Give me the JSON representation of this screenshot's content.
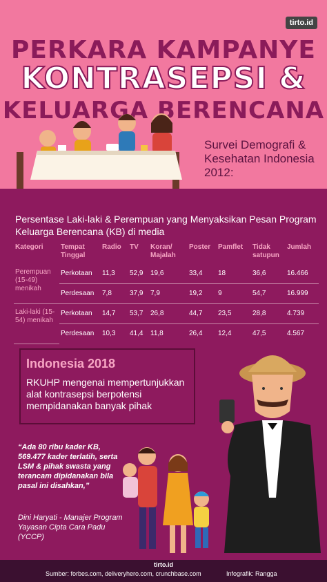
{
  "brand": {
    "logo": "tirto.id",
    "footer": "tirto.id"
  },
  "title": {
    "line1": "PERKARA KAMPANYE",
    "line2": "KONTRASEPSI &",
    "line3": "KELUARGA BERENCANA"
  },
  "survey": "Survei Demografi & Kesehatan Indonesia 2012:",
  "table": {
    "caption": "Persentase Laki-laki & Perempuan yang Menyaksikan Pesan Program Keluarga Berencana (KB) di media",
    "headers": [
      "Kategori",
      "Tempat Tinggal",
      "Radio",
      "TV",
      "Koran/ Majalah",
      "Poster",
      "Pamflet",
      "Tidak satupun",
      "Jumlah"
    ],
    "groups": [
      {
        "label": "Perempuan (15-49) menikah",
        "rows": [
          [
            "Perkotaan",
            "11,3",
            "52,9",
            "19,6",
            "33,4",
            "18",
            "36,6",
            "16.466"
          ],
          [
            "Perdesaan",
            "7,8",
            "37,9",
            "7,9",
            "19,2",
            "9",
            "54,7",
            "16.999"
          ]
        ]
      },
      {
        "label": "Laki-laki (15-54) menikah",
        "rows": [
          [
            "Perkotaan",
            "14,7",
            "53,7",
            "26,8",
            "44,7",
            "23,5",
            "28,8",
            "4.739"
          ],
          [
            "Perdesaan",
            "10,3",
            "41,4",
            "11,8",
            "26,4",
            "12,4",
            "47,5",
            "4.567"
          ]
        ]
      }
    ]
  },
  "box": {
    "title": "Indonesia 2018",
    "text": "RKUHP mengenai mempertunjukkan alat kontrasepsi berpotensi mempidanakan banyak pihak"
  },
  "quote": "“Ada 80 ribu kader KB, 569.477 kader terlatih, serta LSM & pihak swasta yang terancam dipidanakan bila pasal ini disahkan,”",
  "author": "Dini Haryati - Manajer Program Yayasan Cipta Cara Padu (YCCP)",
  "footer": {
    "sources": "Sumber: forbes.com, deliveryhero.com, crunchbase.com",
    "credit": "Infografik: Rangga"
  },
  "colors": {
    "background": "#f2789f",
    "panel": "#8e1a5e",
    "title": "#8a1b5a",
    "accent": "#f7a6c4"
  }
}
